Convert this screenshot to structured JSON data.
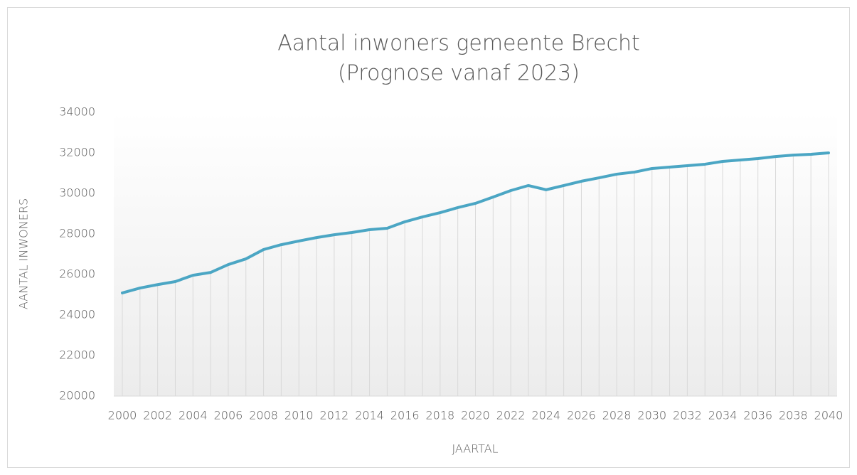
{
  "chart_data": {
    "type": "line",
    "title": "Aantal inwoners gemeente Brecht",
    "subtitle": "(Prognose vanaf 2023)",
    "x_label": "JAARTAL",
    "y_label": "AANTAL INWONERS",
    "categories": [
      "2000",
      null,
      "2002",
      null,
      "2004",
      null,
      "2006",
      null,
      "2008",
      null,
      "2010",
      null,
      "2012",
      null,
      "2014",
      null,
      "2016",
      null,
      "2018",
      null,
      "2020",
      null,
      "2022",
      null,
      "2024",
      null,
      "2026",
      null,
      "2028",
      null,
      "2030",
      null,
      "2032",
      null,
      "2034",
      null,
      "2036",
      null,
      "2038",
      null,
      "2040"
    ],
    "series": [
      {
        "name": "Aantal inwoners",
        "color": "#4ba6c4",
        "values": [
          25090,
          25330,
          25500,
          25650,
          25960,
          26100,
          26490,
          26770,
          27230,
          27470,
          27650,
          27820,
          27960,
          28070,
          28210,
          28280,
          28600,
          28840,
          29050,
          29300,
          29510,
          29820,
          30140,
          30390,
          30180,
          30390,
          30600,
          30770,
          30950,
          31050,
          31230,
          31300,
          31370,
          31440,
          31580,
          31650,
          31720,
          31820,
          31890,
          31930,
          32000
        ]
      }
    ],
    "ylim": [
      20000,
      34000
    ],
    "yticks": [
      20000,
      22000,
      24000,
      26000,
      28000,
      30000,
      32000,
      34000
    ],
    "drop_lines": true
  }
}
